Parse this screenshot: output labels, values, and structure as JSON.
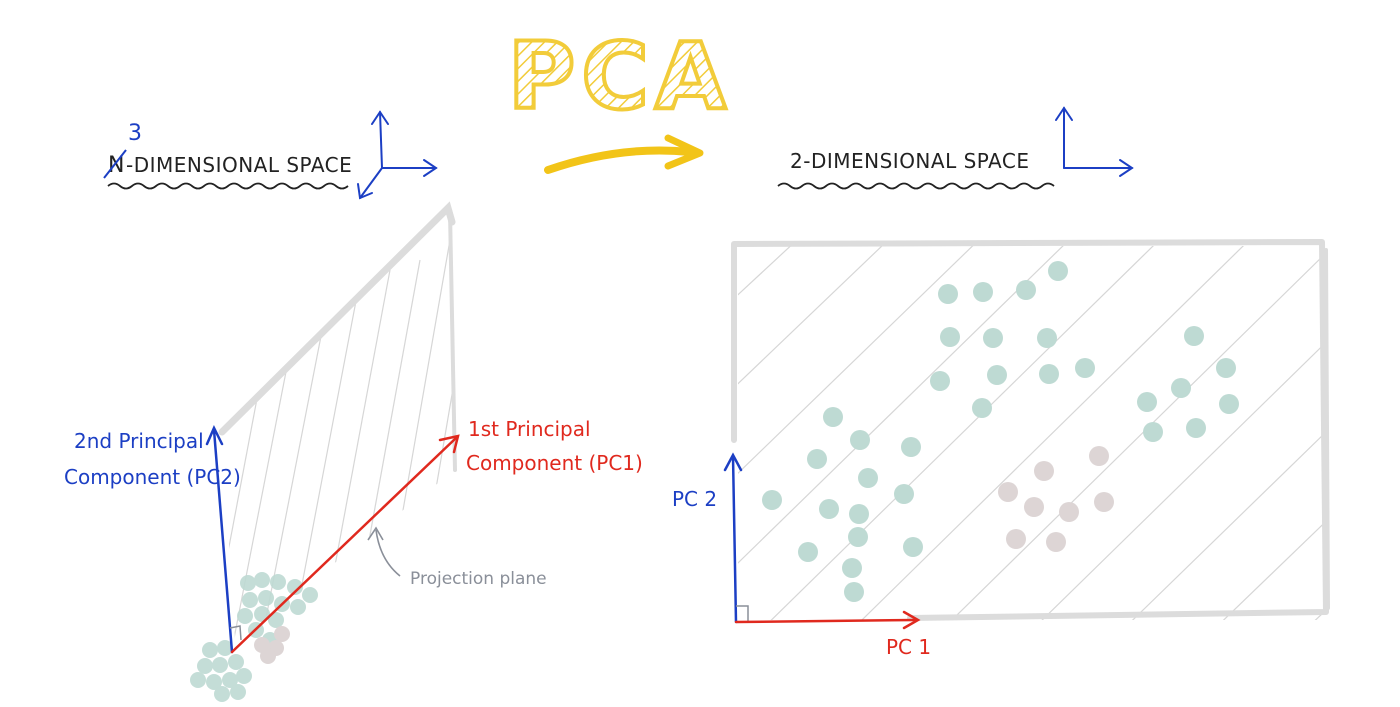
{
  "title": "PCA",
  "left_panel": {
    "heading_struck": "N",
    "heading_correction": "3",
    "heading_rest": "-DIMENSIONAL SPACE",
    "pc2_label_line1": "2nd Principal",
    "pc2_label_line2": "Component (PC2)",
    "pc1_label_line1": "1st Principal",
    "pc1_label_line2": "Component (PC1)",
    "plane_label": "Projection plane"
  },
  "right_panel": {
    "heading": "2-DIMENSIONAL SPACE",
    "x_axis_label": "PC 1",
    "y_axis_label": "PC 2"
  },
  "colors": {
    "title_yellow": "#f2cc3a",
    "axis_blue": "#1c3fc4",
    "pc1_red": "#e0291e",
    "plane_gray": "#dcdcdc",
    "teal_point": "#bedad3",
    "pink_point": "#ddd5d5",
    "arrow_yellow": "#f2c418",
    "annot_gray": "#8a8f99"
  }
}
